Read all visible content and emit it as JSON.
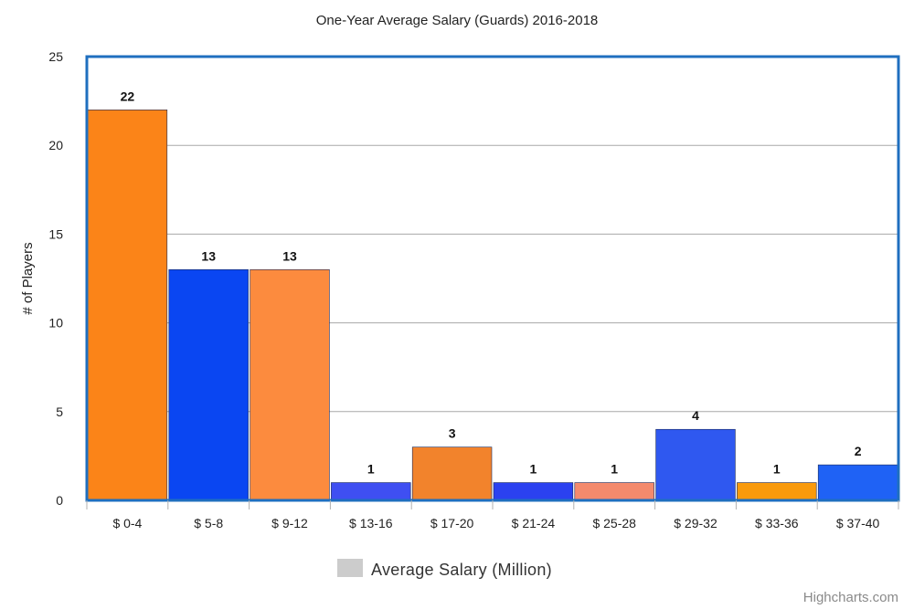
{
  "chart_data": {
    "type": "bar",
    "title": "One-Year Average Salary (Guards) 2016-2018",
    "ylabel": "# of Players",
    "categories": [
      "$ 0-4",
      "$ 5-8",
      "$ 9-12",
      "$ 13-16",
      "$ 17-20",
      "$ 21-24",
      "$ 25-28",
      "$ 29-32",
      "$ 33-36",
      "$ 37-40"
    ],
    "series": [
      {
        "name": "Average Salary (Million)",
        "values": [
          22,
          13,
          13,
          1,
          3,
          1,
          1,
          4,
          1,
          2
        ]
      }
    ],
    "bar_colors": [
      "#fb8418",
      "#0a46f2",
      "#fc8b3e",
      "#3f4ff2",
      "#f2832c",
      "#2b41f0",
      "#f48a6d",
      "#2f58f0",
      "#f99a0c",
      "#1f62f5"
    ],
    "ylim": [
      0,
      25
    ],
    "yticks": [
      0,
      5,
      10,
      15,
      20,
      25
    ],
    "grid": true,
    "data_labels": true,
    "legend_position": "bottom-center",
    "legend_color": "#cccccc",
    "plot_border_color": "#1f6fbf"
  },
  "credit": "Highcharts.com"
}
